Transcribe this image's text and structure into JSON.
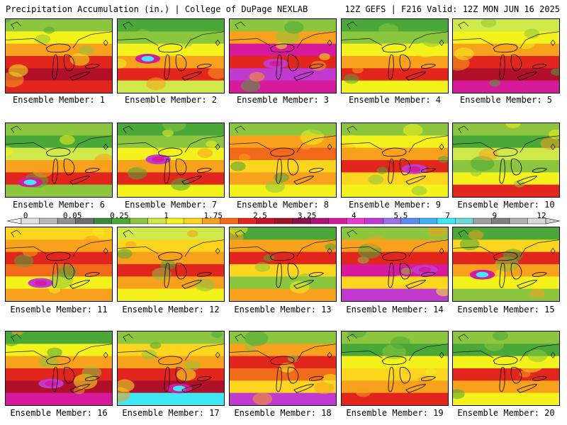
{
  "header": {
    "left": "Precipitation Accumulation (in.) | College of DuPage NEXLAB",
    "right": "12Z GEFS | F216 Valid: 12Z MON JUN 16 2025"
  },
  "colors": {
    "very_light": "#eaf65a",
    "light": "#cfe84a",
    "green_light": "#8cc63e",
    "green": "#4aa838",
    "green_dark": "#2e8b2e",
    "yellow": "#f4f21c",
    "yellow_orange": "#fbd51e",
    "orange": "#f7a11c",
    "orange_red": "#f16a1a",
    "red": "#e2261e",
    "dark_red": "#b0102a",
    "magenta": "#d61a9b",
    "violet": "#c03ad0",
    "blue": "#5a8cf0",
    "cyan": "#3fe8f5"
  },
  "colorbar": {
    "labels": [
      "0",
      "0.05",
      "0.25",
      "1",
      "1.75",
      "2.5",
      "3.25",
      "4",
      "5.5",
      "7",
      "9",
      "12"
    ],
    "swatches": [
      "#e0e0e0",
      "#b8b8b8",
      "#909090",
      "#6e6e6e",
      "#3a8a3a",
      "#4aa838",
      "#8cc63e",
      "#cfe84a",
      "#f4f21c",
      "#fbd51e",
      "#f7a11c",
      "#f16a1a",
      "#e2261e",
      "#c4102a",
      "#a0102a",
      "#8a1050",
      "#b0107a",
      "#d61a9b",
      "#e83cd0",
      "#c03ad0",
      "#9a70e8",
      "#5a8cf0",
      "#3fb0f5",
      "#3fe8f5",
      "#6fd8d8",
      "#a0a0a0",
      "#808080",
      "#b0b0b0",
      "#d8d8d8"
    ]
  },
  "members": [
    {
      "label": "Ensemble Member: 1",
      "bands": [
        "green_light",
        "yellow",
        "orange",
        "red",
        "dark_red",
        "red"
      ],
      "hotspot": "none"
    },
    {
      "label": "Ensemble Member: 2",
      "bands": [
        "green",
        "green_light",
        "yellow",
        "orange",
        "red",
        "light"
      ],
      "hotspot": "cyan"
    },
    {
      "label": "Ensemble Member: 3",
      "bands": [
        "green_light",
        "orange",
        "magenta",
        "red",
        "violet",
        "magenta"
      ],
      "hotspot": "magenta"
    },
    {
      "label": "Ensemble Member: 4",
      "bands": [
        "green",
        "green_light",
        "yellow",
        "orange",
        "red",
        "yellow"
      ],
      "hotspot": "none"
    },
    {
      "label": "Ensemble Member: 5",
      "bands": [
        "light",
        "yellow",
        "orange",
        "red",
        "dark_red",
        "magenta"
      ],
      "hotspot": "none"
    },
    {
      "label": "Ensemble Member: 6",
      "bands": [
        "green_light",
        "green",
        "light",
        "orange",
        "red",
        "green_light"
      ],
      "hotspot": "cyan"
    },
    {
      "label": "Ensemble Member: 7",
      "bands": [
        "green",
        "green_light",
        "yellow",
        "orange",
        "red",
        "yellow"
      ],
      "hotspot": "magenta"
    },
    {
      "label": "Ensemble Member: 8",
      "bands": [
        "green_light",
        "orange",
        "orange_red",
        "yellow_orange",
        "orange",
        "yellow"
      ],
      "hotspot": "none"
    },
    {
      "label": "Ensemble Member: 9",
      "bands": [
        "green_light",
        "yellow",
        "orange",
        "red",
        "yellow_orange",
        "yellow"
      ],
      "hotspot": "magenta"
    },
    {
      "label": "Ensemble Member: 10",
      "bands": [
        "green_light",
        "green",
        "light",
        "green_light",
        "yellow",
        "red"
      ],
      "hotspot": "none"
    },
    {
      "label": "Ensemble Member: 11",
      "bands": [
        "yellow_orange",
        "orange",
        "red",
        "orange_red",
        "yellow",
        "orange"
      ],
      "hotspot": "magenta"
    },
    {
      "label": "Ensemble Member: 12",
      "bands": [
        "light",
        "yellow_orange",
        "orange",
        "red",
        "orange",
        "yellow"
      ],
      "hotspot": "none"
    },
    {
      "label": "Ensemble Member: 13",
      "bands": [
        "green",
        "orange",
        "red",
        "yellow_orange",
        "green_light",
        "orange"
      ],
      "hotspot": "none"
    },
    {
      "label": "Ensemble Member: 14",
      "bands": [
        "green_light",
        "orange",
        "red",
        "magenta",
        "yellow_orange",
        "violet"
      ],
      "hotspot": "magenta"
    },
    {
      "label": "Ensemble Member: 15",
      "bands": [
        "green",
        "yellow_orange",
        "red",
        "orange",
        "yellow",
        "green_light"
      ],
      "hotspot": "cyan"
    },
    {
      "label": "Ensemble Member: 16",
      "bands": [
        "green",
        "yellow",
        "orange",
        "red",
        "dark_red",
        "magenta"
      ],
      "hotspot": "magenta"
    },
    {
      "label": "Ensemble Member: 17",
      "bands": [
        "green_light",
        "yellow_orange",
        "orange",
        "red",
        "dark_red",
        "cyan"
      ],
      "hotspot": "cyan"
    },
    {
      "label": "Ensemble Member: 18",
      "bands": [
        "green_light",
        "orange",
        "red",
        "orange_red",
        "yellow_orange",
        "violet"
      ],
      "hotspot": "none"
    },
    {
      "label": "Ensemble Member: 19",
      "bands": [
        "green_light",
        "green",
        "yellow",
        "yellow_orange",
        "orange",
        "red"
      ],
      "hotspot": "none"
    },
    {
      "label": "Ensemble Member: 20",
      "bands": [
        "green_light",
        "green",
        "yellow",
        "red",
        "orange",
        "yellow"
      ],
      "hotspot": "none"
    }
  ]
}
